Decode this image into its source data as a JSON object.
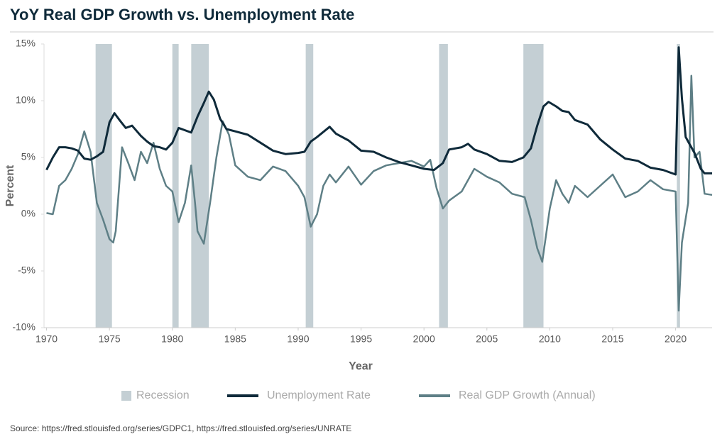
{
  "chart_data": {
    "type": "line",
    "title": "YoY Real GDP Growth vs. Unemployment Rate",
    "x_label": "Year",
    "y_label": "Percent",
    "source": "Source: https://fred.stlouisfed.org/series/GDPC1, https://fred.stlouisfed.org/series/UNRATE",
    "xlim": [
      1969.8,
      2022.9
    ],
    "ylim": [
      -10,
      15
    ],
    "xticks": [
      1970,
      1975,
      1980,
      1985,
      1990,
      1995,
      2000,
      2005,
      2010,
      2015,
      2020
    ],
    "yticks": [
      {
        "value": -10,
        "label": "-10%"
      },
      {
        "value": -5,
        "label": "-5%"
      },
      {
        "value": 0,
        "label": "0%"
      },
      {
        "value": 5,
        "label": "5%"
      },
      {
        "value": 10,
        "label": "10%"
      },
      {
        "value": 15,
        "label": "15%"
      }
    ],
    "recession_label": "Recession",
    "recession_color": "#c4cfd4",
    "recessions": [
      [
        1973.9,
        1975.2
      ],
      [
        1980.0,
        1980.5
      ],
      [
        1981.5,
        1982.9
      ],
      [
        1990.6,
        1991.2
      ],
      [
        2001.2,
        2001.9
      ],
      [
        2007.9,
        2009.5
      ],
      [
        2020.1,
        2020.35
      ]
    ],
    "series": [
      {
        "name": "Unemployment Rate",
        "color": "#0f2a3a",
        "x": [
          1970.0,
          1970.5,
          1971.0,
          1971.5,
          1972.0,
          1972.5,
          1973.0,
          1973.5,
          1974.0,
          1974.5,
          1975.0,
          1975.4,
          1975.8,
          1976.3,
          1976.8,
          1977.5,
          1978.0,
          1978.5,
          1979.0,
          1979.5,
          1980.0,
          1980.5,
          1981.0,
          1981.5,
          1982.0,
          1982.5,
          1982.9,
          1983.3,
          1983.8,
          1984.3,
          1985.0,
          1986.0,
          1987.0,
          1988.0,
          1989.0,
          1990.0,
          1990.5,
          1991.0,
          1991.5,
          1992.5,
          1993.0,
          1994.0,
          1995.0,
          1996.0,
          1997.0,
          1998.0,
          1999.0,
          2000.0,
          2000.8,
          2001.5,
          2002.0,
          2003.0,
          2003.5,
          2004.0,
          2005.0,
          2006.0,
          2007.0,
          2007.9,
          2008.5,
          2009.0,
          2009.5,
          2009.9,
          2010.5,
          2011.0,
          2011.5,
          2012.0,
          2013.0,
          2014.0,
          2015.0,
          2016.0,
          2017.0,
          2018.0,
          2019.0,
          2020.0,
          2020.25,
          2020.5,
          2020.8,
          2021.0,
          2021.5,
          2022.0,
          2022.3,
          2022.9
        ],
        "values": [
          3.9,
          5.0,
          5.9,
          5.9,
          5.8,
          5.6,
          4.9,
          4.8,
          5.1,
          5.5,
          8.1,
          8.9,
          8.3,
          7.6,
          7.8,
          6.9,
          6.4,
          6.0,
          5.9,
          5.7,
          6.3,
          7.6,
          7.4,
          7.2,
          8.6,
          9.8,
          10.8,
          10.1,
          8.4,
          7.5,
          7.3,
          7.0,
          6.3,
          5.6,
          5.3,
          5.4,
          5.5,
          6.4,
          6.8,
          7.7,
          7.1,
          6.5,
          5.6,
          5.5,
          5.0,
          4.6,
          4.3,
          4.0,
          3.9,
          4.5,
          5.7,
          5.9,
          6.2,
          5.7,
          5.3,
          4.7,
          4.6,
          5.0,
          5.8,
          7.8,
          9.5,
          9.9,
          9.5,
          9.1,
          9.0,
          8.3,
          7.9,
          6.6,
          5.7,
          4.9,
          4.7,
          4.1,
          3.9,
          3.5,
          14.7,
          10.2,
          6.8,
          6.4,
          5.4,
          4.0,
          3.6,
          3.6
        ]
      },
      {
        "name": "Real GDP Growth (Annual)",
        "color": "#5e7f86",
        "x": [
          1970.0,
          1970.5,
          1971.0,
          1971.5,
          1972.0,
          1972.5,
          1973.0,
          1973.5,
          1974.0,
          1974.5,
          1975.0,
          1975.3,
          1975.5,
          1976.0,
          1976.5,
          1977.0,
          1977.5,
          1978.0,
          1978.5,
          1979.0,
          1979.5,
          1980.0,
          1980.5,
          1981.0,
          1981.5,
          1981.8,
          1982.0,
          1982.5,
          1983.0,
          1983.5,
          1984.0,
          1984.5,
          1985.0,
          1986.0,
          1987.0,
          1988.0,
          1989.0,
          1990.0,
          1990.5,
          1991.0,
          1991.5,
          1992.0,
          1992.5,
          1993.0,
          1994.0,
          1995.0,
          1996.0,
          1997.0,
          1998.0,
          1999.0,
          2000.0,
          2000.5,
          2001.0,
          2001.5,
          2002.0,
          2003.0,
          2004.0,
          2005.0,
          2006.0,
          2007.0,
          2008.0,
          2008.5,
          2009.0,
          2009.4,
          2010.0,
          2010.5,
          2011.0,
          2011.5,
          2012.0,
          2013.0,
          2014.0,
          2015.0,
          2016.0,
          2017.0,
          2018.0,
          2019.0,
          2020.0,
          2020.25,
          2020.5,
          2021.0,
          2021.25,
          2021.5,
          2021.9,
          2022.3,
          2022.9
        ],
        "values": [
          0.1,
          0.0,
          2.5,
          3.0,
          4.0,
          5.3,
          7.3,
          5.5,
          1.0,
          -0.5,
          -2.2,
          -2.5,
          -1.5,
          5.9,
          4.5,
          3.0,
          5.5,
          4.5,
          6.3,
          4.0,
          2.5,
          2.0,
          -0.7,
          1.0,
          4.3,
          1.0,
          -1.5,
          -2.6,
          1.0,
          5.0,
          8.2,
          7.0,
          4.3,
          3.3,
          3.0,
          4.2,
          3.8,
          2.5,
          1.5,
          -1.1,
          0.0,
          2.5,
          3.5,
          2.8,
          4.2,
          2.6,
          3.8,
          4.3,
          4.5,
          4.7,
          4.2,
          4.8,
          2.3,
          0.5,
          1.2,
          2.0,
          4.0,
          3.3,
          2.8,
          1.8,
          1.5,
          -0.5,
          -3.0,
          -4.2,
          0.5,
          3.0,
          1.8,
          1.0,
          2.5,
          1.5,
          2.5,
          3.5,
          1.5,
          2.0,
          3.0,
          2.2,
          2.0,
          -8.5,
          -2.5,
          1.0,
          12.2,
          5.0,
          5.5,
          1.8,
          1.7
        ]
      }
    ]
  }
}
